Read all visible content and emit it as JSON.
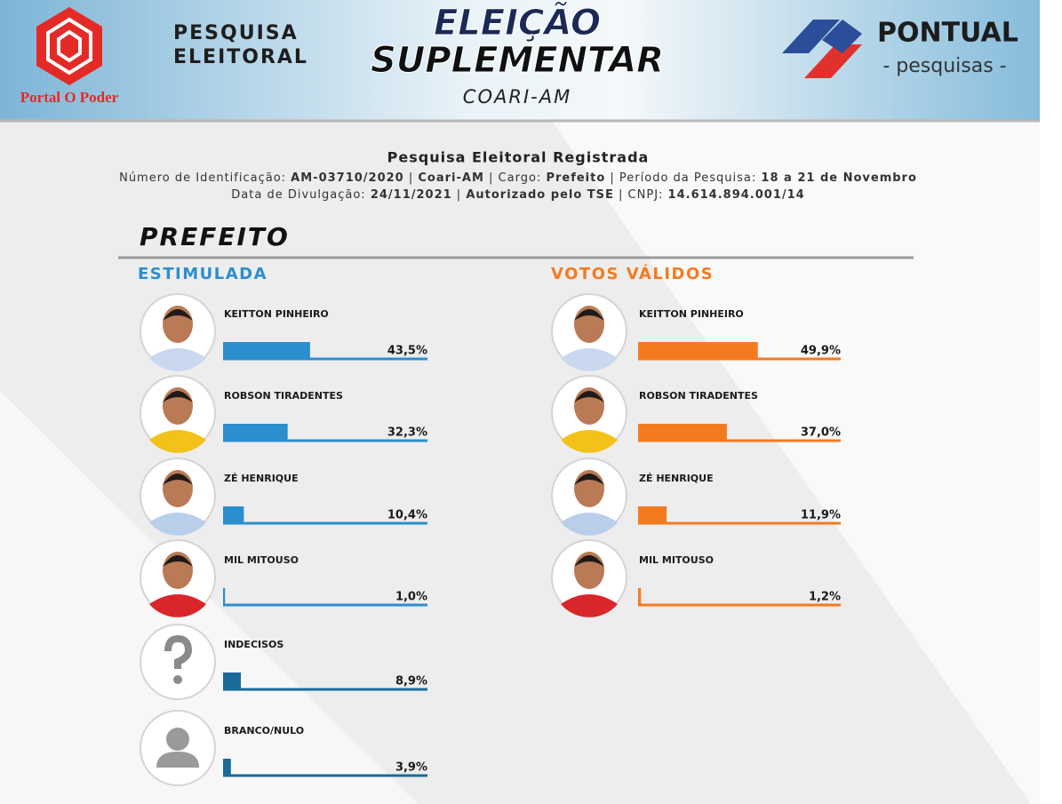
{
  "header": {
    "logo_text": "Portal O Poder",
    "survey_line1": "PESQUISA",
    "survey_line2": "ELEITORAL",
    "title_line1": "ELEIÇÃO",
    "title_line2": "SUPLEMENTAR",
    "location": "COARI-AM",
    "brand": "PONTUAL",
    "brand_sub": "- pesquisas -"
  },
  "info": {
    "heading": "Pesquisa Eleitoral Registrada",
    "line1": [
      "Número de Identificação: ",
      "AM-03710/2020",
      " | ",
      "Coari-AM",
      " | Cargo: ",
      "Prefeito",
      " | Período da Pesquisa: ",
      "18 a 21 de Novembro"
    ],
    "line2": [
      "Data de Divulgação: ",
      "24/11/2021",
      " | ",
      "Autorizado pelo TSE",
      " | CNPJ: ",
      "14.614.894.001/14"
    ]
  },
  "section": "PREFEITO",
  "chart_data": [
    {
      "type": "bar",
      "title": "ESTIMULADA",
      "color": "#2b8fcd",
      "categories": [
        "KEITTON PINHEIRO",
        "ROBSON TIRADENTES",
        "ZÉ HENRIQUE",
        "MIL MITOUSO",
        "INDECISOS",
        "BRANCO/NULO"
      ],
      "values": [
        43.5,
        32.3,
        10.4,
        1.0,
        8.9,
        3.9
      ],
      "value_labels": [
        "43,5%",
        "32,3%",
        "10,4%",
        "1,0%",
        "8,9%",
        "3,9%"
      ]
    },
    {
      "type": "bar",
      "title": "VOTOS VÁLIDOS",
      "color": "#f47a20",
      "categories": [
        "KEITTON PINHEIRO",
        "ROBSON TIRADENTES",
        "ZÉ HENRIQUE",
        "MIL MITOUSO"
      ],
      "values": [
        49.9,
        37.0,
        11.9,
        1.2
      ],
      "value_labels": [
        "49,9%",
        "37,0%",
        "11,9%",
        "1,2%"
      ]
    }
  ]
}
